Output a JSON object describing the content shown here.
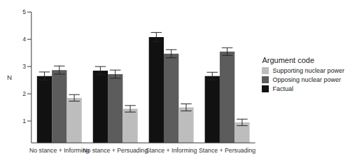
{
  "chart_data": {
    "type": "bar",
    "y_label": "N",
    "legend_title": "Argument code",
    "legend": "right",
    "categories": [
      "No stance + Informing",
      "No stance + Persuading",
      "Stance + Informing",
      "Stance + Persuading"
    ],
    "series": [
      {
        "name": "Factual",
        "color": "#111111",
        "values": [
          2.65,
          2.85,
          4.08,
          2.65
        ],
        "errors": [
          0.15,
          0.15,
          0.17,
          0.14
        ]
      },
      {
        "name": "Opposing nuclear power",
        "color": "#5c5c5c",
        "values": [
          2.87,
          2.72,
          3.47,
          3.55
        ],
        "errors": [
          0.15,
          0.15,
          0.15,
          0.14
        ]
      },
      {
        "name": "Supporting nuclear power",
        "color": "#bdbdbd",
        "values": [
          1.85,
          1.45,
          1.5,
          0.95
        ],
        "errors": [
          0.12,
          0.12,
          0.13,
          0.12
        ]
      }
    ],
    "ylim": [
      0.2,
      5
    ],
    "yticks": [
      1,
      2,
      3,
      4,
      5
    ],
    "grid": false
  }
}
